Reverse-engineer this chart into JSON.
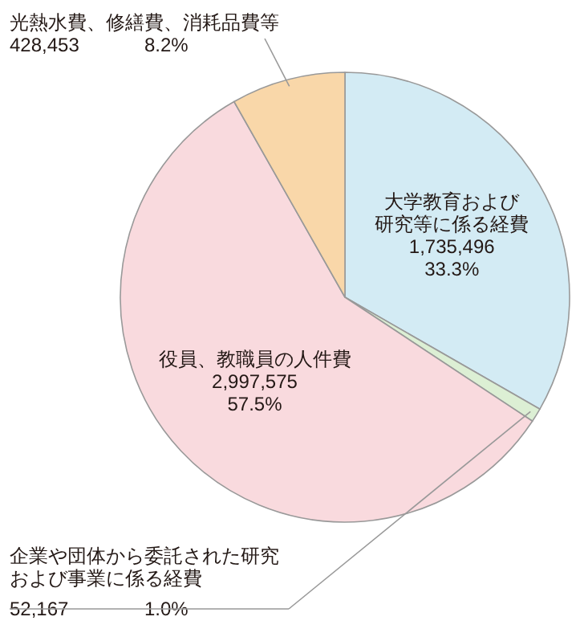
{
  "chart_data": {
    "type": "pie",
    "categories": [
      "大学教育および研究等に係る経費",
      "企業や団体から委託された研究および事業に係る経費",
      "役員、教職員の人件費",
      "光熱水費、修繕費、消耗品費等"
    ],
    "values": [
      1735496,
      52167,
      2997575,
      428453
    ],
    "value_labels": [
      "1,735,496\n33.3%",
      "52,167\n1.0%",
      "2,997,575\n57.5%",
      "428,453\n8.2%"
    ],
    "colors": [
      "#d3ebf4",
      "#dcefd4",
      "#f9dade",
      "#f9d7a9"
    ]
  }
}
